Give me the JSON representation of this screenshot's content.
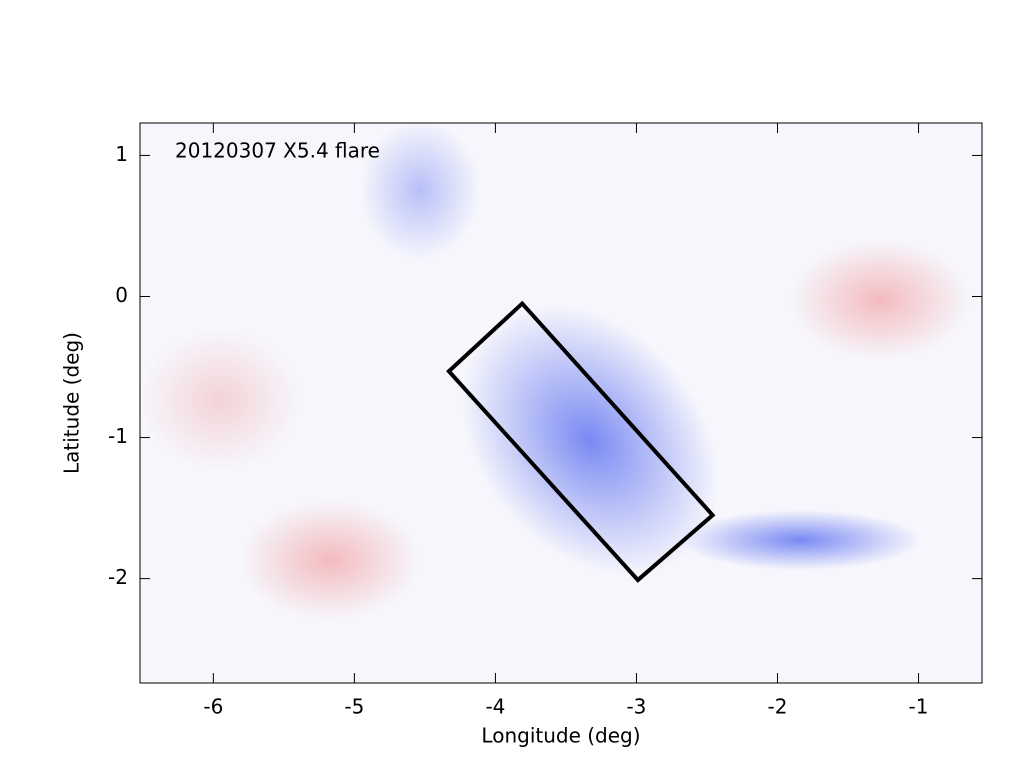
{
  "chart_data": {
    "type": "region",
    "annotation": "20120307 X5.4 flare",
    "x_label": "Longitude (deg)",
    "y_label": "Latitude (deg)",
    "xlim": [
      -6.52,
      -0.55
    ],
    "ylim": [
      -2.74,
      1.23
    ],
    "xticks": [
      -6,
      -5,
      -4,
      -3,
      -2,
      -1
    ],
    "yticks": [
      -2,
      -1,
      0,
      1
    ],
    "box": {
      "x": [
        -3.81,
        -4.33,
        -2.99,
        -2.46
      ],
      "y": [
        -0.05,
        -0.53,
        -2.01,
        -1.55
      ],
      "color": "#000000"
    }
  }
}
